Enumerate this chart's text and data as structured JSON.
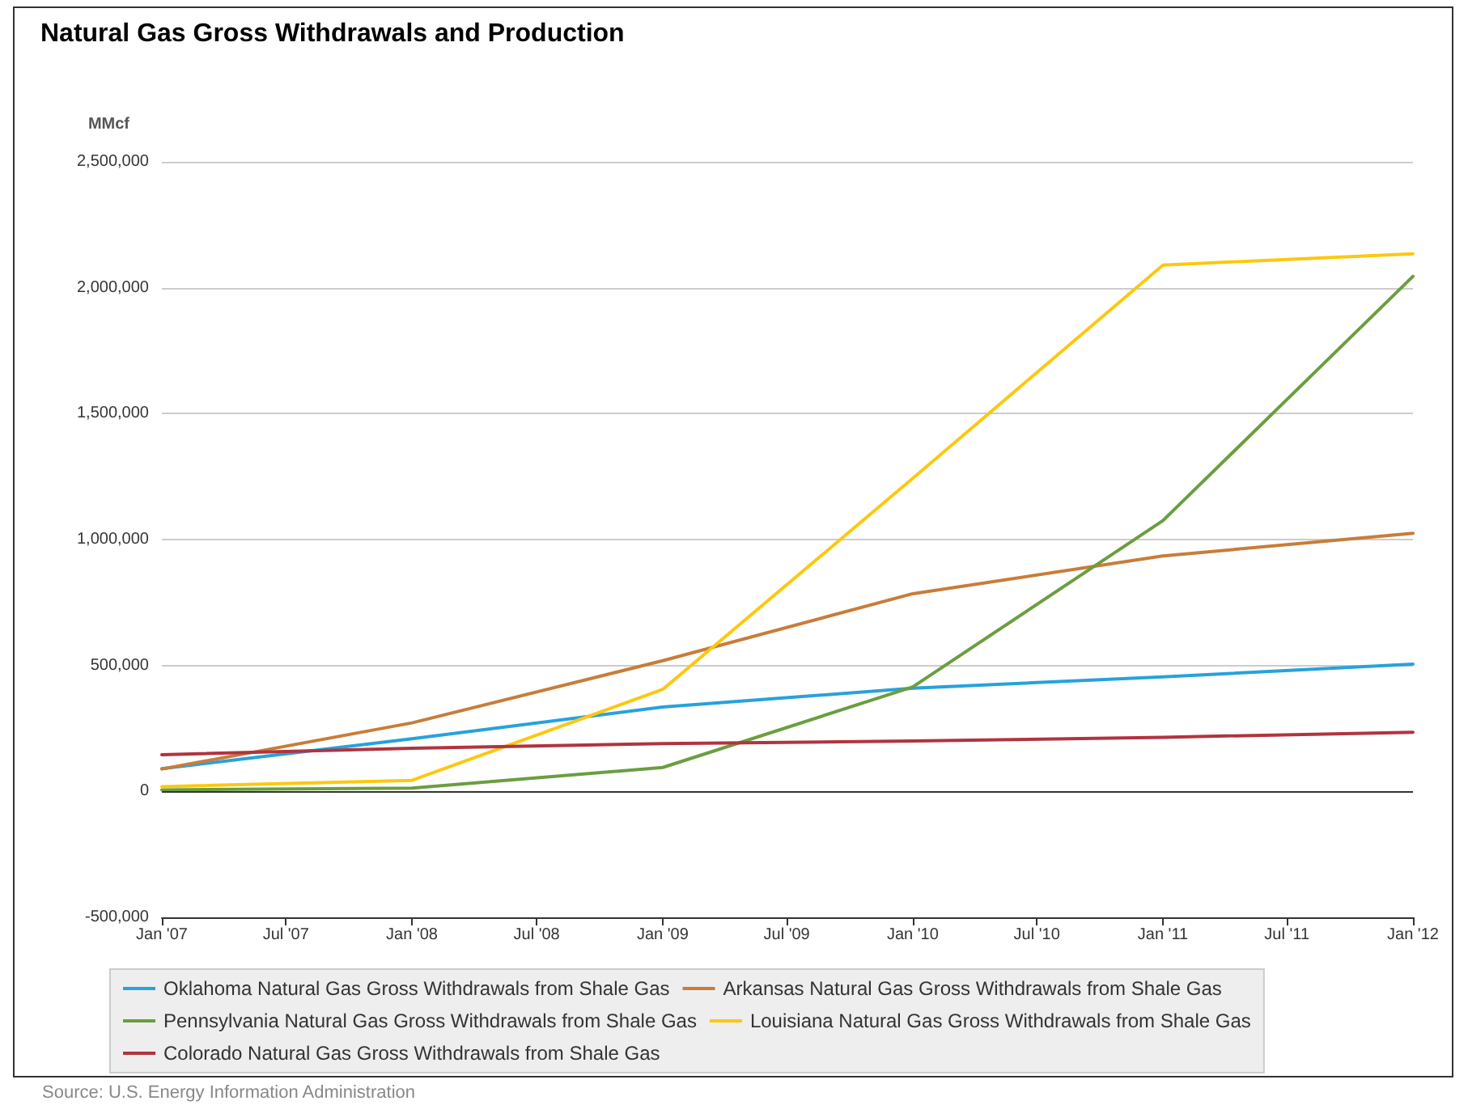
{
  "chart_data": {
    "type": "line",
    "title": "Natural Gas Gross Withdrawals and Production",
    "ylabel": "MMcf",
    "x": [
      "2007-01",
      "2008-01",
      "2009-01",
      "2010-01",
      "2011-01",
      "2012-01"
    ],
    "series": [
      {
        "name": "Oklahoma Natural Gas Gross Withdrawals from Shale Gas",
        "color": "#27a2db",
        "values": [
          90000,
          209000,
          335000,
          410000,
          455000,
          505000
        ]
      },
      {
        "name": "Arkansas Natural Gas Gross Withdrawals from Shale Gas",
        "color": "#c87d3a",
        "values": [
          89000,
          272000,
          519000,
          785000,
          935000,
          1025000
        ]
      },
      {
        "name": "Pennsylvania Natural Gas Gross Withdrawals from Shale Gas",
        "color": "#6a9e3f",
        "values": [
          6000,
          13000,
          95000,
          415000,
          1075000,
          2045000
        ]
      },
      {
        "name": "Louisiana Natural Gas Gross Withdrawals from Shale Gas",
        "color": "#fcc80f",
        "values": [
          19000,
          44000,
          405000,
          1243000,
          2090000,
          2135000
        ]
      },
      {
        "name": "Colorado Natural Gas Gross Withdrawals from Shale Gas",
        "color": "#b0343f",
        "values": [
          146000,
          171000,
          190000,
          200000,
          215000,
          235000
        ]
      }
    ],
    "xlim": [
      "2007-01",
      "2012-01"
    ],
    "xticks": [
      {
        "value": "2007-01",
        "label": "Jan '07"
      },
      {
        "value": "2007-07",
        "label": "Jul '07"
      },
      {
        "value": "2008-01",
        "label": "Jan '08"
      },
      {
        "value": "2008-07",
        "label": "Jul '08"
      },
      {
        "value": "2009-01",
        "label": "Jan '09"
      },
      {
        "value": "2009-07",
        "label": "Jul '09"
      },
      {
        "value": "2010-01",
        "label": "Jan '10"
      },
      {
        "value": "2010-07",
        "label": "Jul '10"
      },
      {
        "value": "2011-01",
        "label": "Jan '11"
      },
      {
        "value": "2011-07",
        "label": "Jul '11"
      },
      {
        "value": "2012-01",
        "label": "Jan '12"
      }
    ],
    "ylim": [
      -500000,
      2500000
    ],
    "yticks": [
      {
        "value": -500000,
        "label": "-500,000"
      },
      0,
      {
        "value": 500000,
        "label": "500,000"
      },
      {
        "value": 1000000,
        "label": "1,000,000"
      },
      {
        "value": 1500000,
        "label": "1,500,000"
      },
      {
        "value": 2000000,
        "label": "2,000,000"
      },
      {
        "value": 2500000,
        "label": "2,500,000"
      }
    ],
    "grid": "y",
    "legend": "bottom",
    "marker": "none",
    "line_style": "solid",
    "annotations": [
      "Source: U.S. Energy Information Administration"
    ]
  }
}
